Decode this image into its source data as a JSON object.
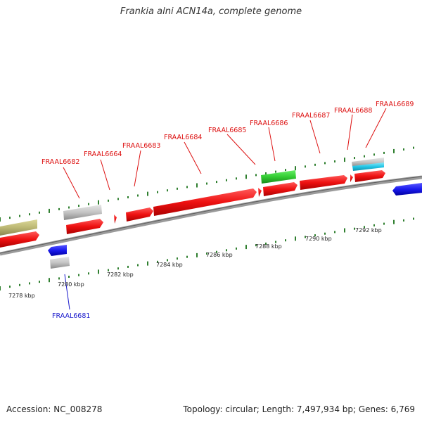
{
  "title": "Frankia alni ACN14a, complete genome",
  "footer": {
    "accession": "Accession: NC_008278",
    "stats": "Topology: circular; Length: 7,497,934 bp; Genes: 6,769"
  },
  "colors": {
    "backbone": "#808080",
    "forward_gene": "#ee1111",
    "reverse_gene": "#1a1aee",
    "grey_feature": "#bdbdbd",
    "olive_feature": "#bcb874",
    "green_feature": "#33cc33",
    "cyan_feature": "#22c6e6",
    "tick_green": "#2f7f2f",
    "label_red": "#dd1111",
    "label_blue": "#1a1acc"
  },
  "gene_labels": [
    {
      "text": "FRAAL6682",
      "strand": "forward"
    },
    {
      "text": "FRAAL6664",
      "strand": "forward"
    },
    {
      "text": "FRAAL6683",
      "strand": "forward"
    },
    {
      "text": "FRAAL6684",
      "strand": "forward"
    },
    {
      "text": "FRAAL6685",
      "strand": "forward"
    },
    {
      "text": "FRAAL6686",
      "strand": "forward"
    },
    {
      "text": "FRAAL6687",
      "strand": "forward"
    },
    {
      "text": "FRAAL6688",
      "strand": "forward"
    },
    {
      "text": "FRAAL6689",
      "strand": "forward"
    },
    {
      "text": "FRAAL6681",
      "strand": "reverse"
    }
  ],
  "kbp_labels": [
    "7278 kbp",
    "7280 kbp",
    "7282 kbp",
    "7284 kbp",
    "7286 kbp",
    "7288 kbp",
    "7290 kbp",
    "7292 kbp"
  ]
}
